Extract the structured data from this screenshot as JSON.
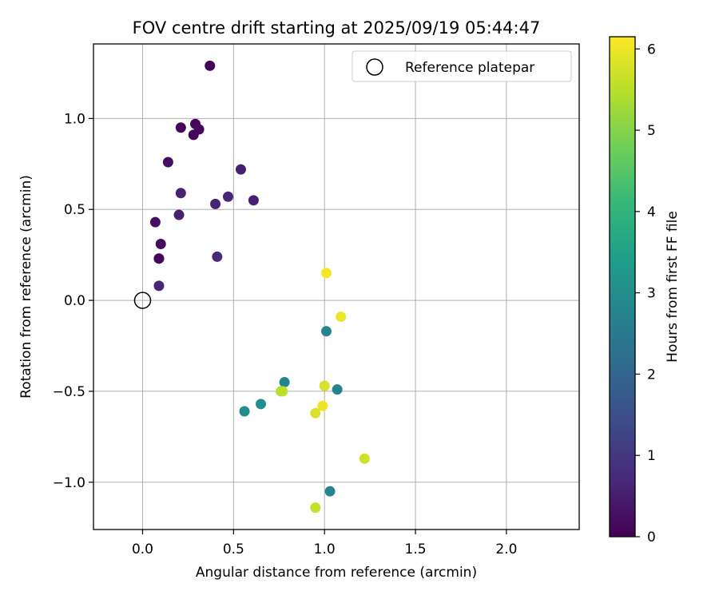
{
  "chart_data": {
    "type": "scatter",
    "title": "FOV centre drift starting at 2025/09/19 05:44:47",
    "xlabel": "Angular distance from reference (arcmin)",
    "ylabel": "Rotation from reference (arcmin)",
    "xlim": [
      -0.27,
      2.4
    ],
    "ylim": [
      -1.26,
      1.41
    ],
    "xticks": [
      0.0,
      0.5,
      1.0,
      1.5,
      2.0
    ],
    "xtick_labels": [
      "0.0",
      "0.5",
      "1.0",
      "1.5",
      "2.0"
    ],
    "yticks": [
      -1.0,
      -0.5,
      0.0,
      0.5,
      1.0
    ],
    "ytick_labels": [
      "−1.0",
      "−0.5",
      "0.0",
      "0.5",
      "1.0"
    ],
    "grid": true,
    "legend": {
      "position": "top-right",
      "entries": [
        "Reference platepar"
      ]
    },
    "reference_point": {
      "x": 0.0,
      "y": 0.0,
      "label": "Reference platepar"
    },
    "colorbar": {
      "label": "Hours from first FF file",
      "colormap": "viridis",
      "range": [
        0,
        6.15
      ],
      "ticks": [
        0,
        1,
        2,
        3,
        4,
        5,
        6
      ],
      "tick_labels": [
        "0",
        "1",
        "2",
        "3",
        "4",
        "5",
        "6"
      ]
    },
    "points": [
      {
        "x": 0.37,
        "y": 1.29,
        "hours": 0.05
      },
      {
        "x": 0.29,
        "y": 0.97,
        "hours": 0.08
      },
      {
        "x": 0.31,
        "y": 0.94,
        "hours": 0.15
      },
      {
        "x": 0.21,
        "y": 0.95,
        "hours": 0.1
      },
      {
        "x": 0.28,
        "y": 0.91,
        "hours": 0.05
      },
      {
        "x": 0.14,
        "y": 0.76,
        "hours": 0.2
      },
      {
        "x": 0.54,
        "y": 0.72,
        "hours": 0.55
      },
      {
        "x": 0.21,
        "y": 0.59,
        "hours": 0.6
      },
      {
        "x": 0.47,
        "y": 0.57,
        "hours": 0.65
      },
      {
        "x": 0.61,
        "y": 0.55,
        "hours": 0.55
      },
      {
        "x": 0.4,
        "y": 0.53,
        "hours": 0.6
      },
      {
        "x": 0.2,
        "y": 0.47,
        "hours": 0.55
      },
      {
        "x": 0.07,
        "y": 0.43,
        "hours": 0.25
      },
      {
        "x": 0.1,
        "y": 0.31,
        "hours": 0.2
      },
      {
        "x": 0.09,
        "y": 0.23,
        "hours": 0.3
      },
      {
        "x": 0.09,
        "y": 0.23,
        "hours": 0.1
      },
      {
        "x": 0.41,
        "y": 0.24,
        "hours": 0.75
      },
      {
        "x": 0.09,
        "y": 0.08,
        "hours": 0.65
      },
      {
        "x": 1.01,
        "y": 0.15,
        "hours": 6.1
      },
      {
        "x": 1.09,
        "y": -0.09,
        "hours": 6.0
      },
      {
        "x": 1.01,
        "y": -0.17,
        "hours": 2.8
      },
      {
        "x": 0.78,
        "y": -0.45,
        "hours": 2.8
      },
      {
        "x": 1.0,
        "y": -0.47,
        "hours": 5.8
      },
      {
        "x": 1.07,
        "y": -0.49,
        "hours": 2.8
      },
      {
        "x": 0.77,
        "y": -0.5,
        "hours": 5.6
      },
      {
        "x": 0.76,
        "y": -0.5,
        "hours": 5.5
      },
      {
        "x": 0.65,
        "y": -0.57,
        "hours": 3.0
      },
      {
        "x": 0.99,
        "y": -0.58,
        "hours": 6.0
      },
      {
        "x": 0.56,
        "y": -0.61,
        "hours": 3.0
      },
      {
        "x": 0.95,
        "y": -0.62,
        "hours": 5.8
      },
      {
        "x": 1.22,
        "y": -0.87,
        "hours": 5.7
      },
      {
        "x": 1.03,
        "y": -1.05,
        "hours": 2.8
      },
      {
        "x": 0.95,
        "y": -1.14,
        "hours": 5.6
      }
    ]
  }
}
